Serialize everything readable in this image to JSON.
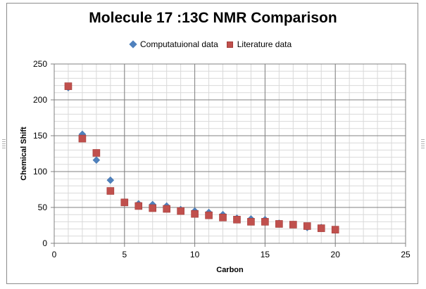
{
  "chart_data": {
    "type": "scatter",
    "title": "Molecule 17 :13C NMR Comparison",
    "xlabel": "Carbon",
    "ylabel": "Chemical Shift",
    "xlim": [
      0,
      25
    ],
    "ylim": [
      0,
      250
    ],
    "x_ticks": [
      0,
      5,
      10,
      15,
      20,
      25
    ],
    "y_ticks": [
      0,
      50,
      100,
      150,
      200,
      250
    ],
    "x_minor_step": 1,
    "y_minor_step": 10,
    "grid": true,
    "legend_position": "top",
    "series": [
      {
        "name": "Computatuional data",
        "marker": "diamond",
        "color": "#4f81bd",
        "x": [
          1,
          2,
          3,
          4,
          5,
          6,
          7,
          8,
          9,
          10,
          11,
          12,
          13,
          14,
          15,
          16,
          17,
          18,
          19,
          20
        ],
        "y": [
          217,
          152,
          116,
          88,
          57,
          55,
          54,
          52,
          47,
          45,
          43,
          40,
          35,
          34,
          33,
          28,
          26,
          22,
          22,
          19
        ]
      },
      {
        "name": "Literature data",
        "marker": "square",
        "color": "#c0504d",
        "x": [
          1,
          2,
          3,
          4,
          5,
          6,
          7,
          8,
          9,
          10,
          11,
          12,
          13,
          14,
          15,
          16,
          17,
          18,
          19,
          20
        ],
        "y": [
          219,
          146,
          126,
          73,
          57,
          52,
          49,
          48,
          45,
          41,
          39,
          36,
          33,
          30,
          30,
          27,
          26,
          24,
          21,
          19
        ]
      }
    ]
  }
}
